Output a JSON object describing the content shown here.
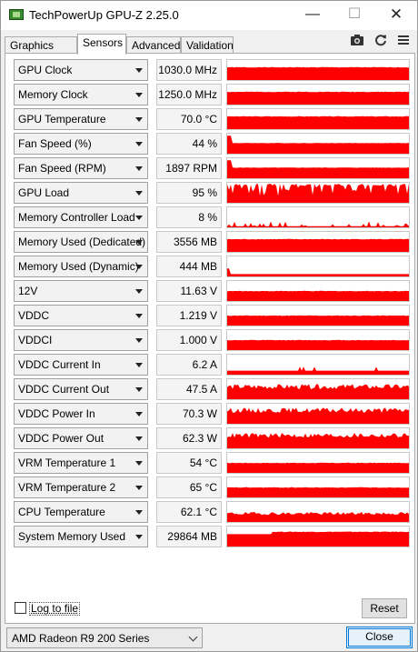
{
  "window": {
    "title": "TechPowerUp GPU-Z 2.25.0"
  },
  "titlebar_buttons": {
    "minimize": "—",
    "maximize": "☐",
    "close": "✕"
  },
  "tabs": [
    {
      "label": "Graphics Card",
      "active": false
    },
    {
      "label": "Sensors",
      "active": true
    },
    {
      "label": "Advanced",
      "active": false
    },
    {
      "label": "Validation",
      "active": false
    }
  ],
  "toolbar_icons": {
    "camera": "camera-icon",
    "refresh": "refresh-icon",
    "menu": "hamburger-icon"
  },
  "graph_color": "#ff0000",
  "sensors": [
    {
      "name": "GPU Clock",
      "value": "1030.0 MHz",
      "pattern": "full",
      "level": 0.55
    },
    {
      "name": "Memory Clock",
      "value": "1250.0 MHz",
      "pattern": "full",
      "level": 0.55
    },
    {
      "name": "GPU Temperature",
      "value": "70.0 °C",
      "pattern": "full",
      "level": 0.7
    },
    {
      "name": "Fan Speed (%)",
      "value": "44 %",
      "pattern": "low-flat",
      "level": 0.3
    },
    {
      "name": "Fan Speed (RPM)",
      "value": "1897 RPM",
      "pattern": "low-flat",
      "level": 0.45
    },
    {
      "name": "GPU Load",
      "value": "95 %",
      "pattern": "spiky-high",
      "level": 0.95
    },
    {
      "name": "Memory Controller Load",
      "value": "8 %",
      "pattern": "sparse-low",
      "level": 0.08
    },
    {
      "name": "Memory Used (Dedicated)",
      "value": "3556 MB",
      "pattern": "full",
      "level": 0.85
    },
    {
      "name": "Memory Used (Dynamic)",
      "value": "444 MB",
      "pattern": "thin",
      "level": 0.12
    },
    {
      "name": "12V",
      "value": "11.63 V",
      "pattern": "mid-flat",
      "level": 0.45
    },
    {
      "name": "VDDC",
      "value": "1.219 V",
      "pattern": "mid-flat",
      "level": 0.5
    },
    {
      "name": "VDDCI",
      "value": "1.000 V",
      "pattern": "mid-flat",
      "level": 0.45
    },
    {
      "name": "VDDC Current In",
      "value": "6.2 A",
      "pattern": "bottom",
      "level": 0.2
    },
    {
      "name": "VDDC Current Out",
      "value": "47.5 A",
      "pattern": "noisy",
      "level": 0.6
    },
    {
      "name": "VDDC Power In",
      "value": "70.3 W",
      "pattern": "noisy",
      "level": 0.65
    },
    {
      "name": "VDDC Power Out",
      "value": "62.3 W",
      "pattern": "noisy",
      "level": 0.62
    },
    {
      "name": "VRM Temperature 1",
      "value": "54 °C",
      "pattern": "mid-flat",
      "level": 0.5
    },
    {
      "name": "VRM Temperature 2",
      "value": "65 °C",
      "pattern": "mid-flat",
      "level": 0.55
    },
    {
      "name": "CPU Temperature",
      "value": "62.1 °C",
      "pattern": "mid-noisy",
      "level": 0.4
    },
    {
      "name": "System Memory Used",
      "value": "29864 MB",
      "pattern": "rising",
      "level": 0.8
    }
  ],
  "footer": {
    "log_to_file": "Log to file",
    "log_checked": false,
    "reset": "Reset",
    "gpu_select": "AMD Radeon R9 200 Series",
    "close": "Close"
  }
}
